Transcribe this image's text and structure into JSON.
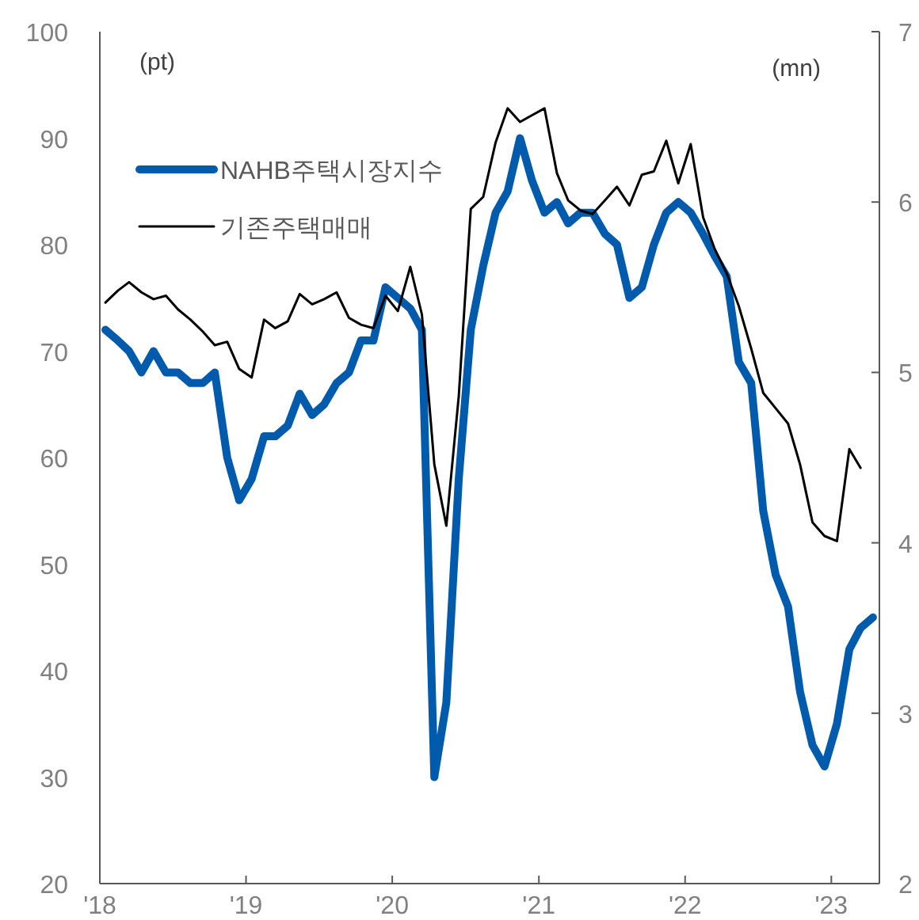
{
  "chart_data": {
    "type": "line",
    "ylabel": "(pt)",
    "y2label": "(mn)",
    "legend": "top left",
    "xlim": [
      "2018-01-01",
      "2023-05-01"
    ],
    "xticks": [
      {
        "value": "2018-01-01",
        "label": "'18"
      },
      {
        "value": "2019-01-01",
        "label": "'19"
      },
      {
        "value": "2020-01-01",
        "label": "'20"
      },
      {
        "value": "2021-01-01",
        "label": "'21"
      },
      {
        "value": "2022-01-01",
        "label": "'22"
      },
      {
        "value": "2023-01-01",
        "label": "'23"
      }
    ],
    "ylim": [
      20,
      100
    ],
    "yticks": [
      20,
      30,
      40,
      50,
      60,
      70,
      80,
      90,
      100
    ],
    "y2lim": [
      2,
      7
    ],
    "y2ticks": [
      2,
      3,
      4,
      5,
      6,
      7
    ],
    "series": [
      {
        "name": "NAHB주택시장지수",
        "color": "#005bac",
        "x": [
          "2018-01-15",
          "2018-02-15",
          "2018-03-15",
          "2018-04-15",
          "2018-05-15",
          "2018-06-15",
          "2018-07-15",
          "2018-08-15",
          "2018-09-15",
          "2018-10-15",
          "2018-11-15",
          "2018-12-15",
          "2019-01-15",
          "2019-02-15",
          "2019-03-15",
          "2019-04-15",
          "2019-05-15",
          "2019-06-15",
          "2019-07-15",
          "2019-08-15",
          "2019-09-15",
          "2019-10-15",
          "2019-11-15",
          "2019-12-15",
          "2020-01-15",
          "2020-02-15",
          "2020-03-15",
          "2020-04-15",
          "2020-05-15",
          "2020-06-15",
          "2020-07-15",
          "2020-08-15",
          "2020-09-15",
          "2020-10-15",
          "2020-11-15",
          "2020-12-15",
          "2021-01-15",
          "2021-02-15",
          "2021-03-15",
          "2021-04-15",
          "2021-05-15",
          "2021-06-15",
          "2021-07-15",
          "2021-08-15",
          "2021-09-15",
          "2021-10-15",
          "2021-11-15",
          "2021-12-15",
          "2022-01-15",
          "2022-02-15",
          "2022-03-15",
          "2022-04-15",
          "2022-05-15",
          "2022-06-15",
          "2022-07-15",
          "2022-08-15",
          "2022-09-15",
          "2022-10-15",
          "2022-11-15",
          "2022-12-15",
          "2023-01-15",
          "2023-02-15",
          "2023-03-15",
          "2023-04-15"
        ],
        "values": [
          72,
          71,
          70,
          68,
          70,
          68,
          68,
          67,
          67,
          68,
          60,
          56,
          58,
          62,
          62,
          63,
          66,
          64,
          65,
          67,
          68,
          71,
          71,
          76,
          75,
          74,
          72,
          30,
          37,
          58,
          72,
          78,
          83,
          85,
          90,
          86,
          83,
          84,
          82,
          83,
          83,
          81,
          80,
          75,
          76,
          80,
          83,
          84,
          83,
          81,
          79,
          77,
          69,
          67,
          55,
          49,
          46,
          38,
          33,
          31,
          35,
          42,
          44,
          45
        ]
      },
      {
        "name": "기존주택매매",
        "color": "#000000",
        "axis": "y2",
        "x": [
          "2018-01-15",
          "2018-02-15",
          "2018-03-15",
          "2018-04-15",
          "2018-05-15",
          "2018-06-15",
          "2018-07-15",
          "2018-08-15",
          "2018-09-15",
          "2018-10-15",
          "2018-11-15",
          "2018-12-15",
          "2019-01-15",
          "2019-02-15",
          "2019-03-15",
          "2019-04-15",
          "2019-05-15",
          "2019-06-15",
          "2019-07-15",
          "2019-08-15",
          "2019-09-15",
          "2019-10-15",
          "2019-11-15",
          "2019-12-15",
          "2020-01-15",
          "2020-02-15",
          "2020-03-15",
          "2020-04-15",
          "2020-05-15",
          "2020-06-15",
          "2020-07-15",
          "2020-08-15",
          "2020-09-15",
          "2020-10-15",
          "2020-11-15",
          "2020-12-15",
          "2021-01-15",
          "2021-02-15",
          "2021-03-15",
          "2021-04-15",
          "2021-05-15",
          "2021-06-15",
          "2021-07-15",
          "2021-08-15",
          "2021-09-15",
          "2021-10-15",
          "2021-11-15",
          "2021-12-15",
          "2022-01-15",
          "2022-02-15",
          "2022-03-15",
          "2022-04-15",
          "2022-05-15",
          "2022-06-15",
          "2022-07-15",
          "2022-08-15",
          "2022-09-15",
          "2022-10-15",
          "2022-11-15",
          "2022-12-15",
          "2023-01-15",
          "2023-02-15",
          "2023-03-15"
        ],
        "values": [
          5.41,
          5.48,
          5.53,
          5.47,
          5.43,
          5.45,
          5.37,
          5.31,
          5.24,
          5.16,
          5.18,
          5.02,
          4.97,
          5.31,
          5.26,
          5.3,
          5.46,
          5.4,
          5.43,
          5.47,
          5.32,
          5.28,
          5.26,
          5.45,
          5.36,
          5.62,
          5.34,
          4.46,
          4.1,
          4.86,
          5.96,
          6.03,
          6.35,
          6.55,
          6.47,
          6.51,
          6.55,
          6.17,
          6.01,
          5.95,
          5.93,
          6.01,
          6.09,
          5.98,
          6.16,
          6.18,
          6.36,
          6.11,
          6.34,
          5.91,
          5.73,
          5.58,
          5.39,
          5.14,
          4.88,
          4.79,
          4.7,
          4.46,
          4.12,
          4.04,
          4.01,
          4.55,
          4.44
        ]
      }
    ]
  }
}
